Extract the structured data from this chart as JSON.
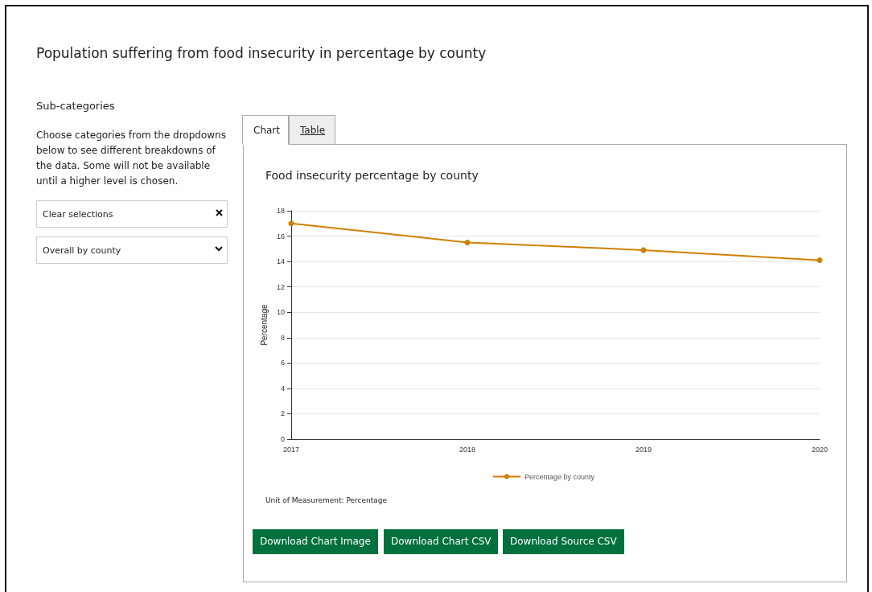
{
  "chart_data": {
    "type": "line",
    "title": "Population suffering from food insecurity in percentage by county",
    "subtitle": "Food insecurity percentage by county",
    "ylabel": "Percentage",
    "categories": [
      "2017",
      "2018",
      "2019",
      "2020"
    ],
    "series": [
      {
        "name": "Percentage by county",
        "color": "#d07f00",
        "values": [
          17.0,
          15.5,
          14.9,
          14.1
        ]
      }
    ],
    "ylim": [
      0,
      18
    ],
    "yticks": [
      0,
      2,
      4,
      6,
      8,
      10,
      12,
      14,
      16,
      18
    ],
    "grid": "y",
    "legend": "bottom",
    "marker": "circle",
    "line_style": "solid",
    "annotations": [
      "Sub-categories",
      "Choose categories from the dropdowns below to see different breakdowns of the data. Some will not be available until a higher level is chosen.",
      "Clear selections",
      "Overall by county",
      "Chart",
      "Table",
      "Unit of Measurement:  Percentage",
      "Download Chart Image",
      "Download Chart CSV",
      "Download Source CSV"
    ]
  }
}
